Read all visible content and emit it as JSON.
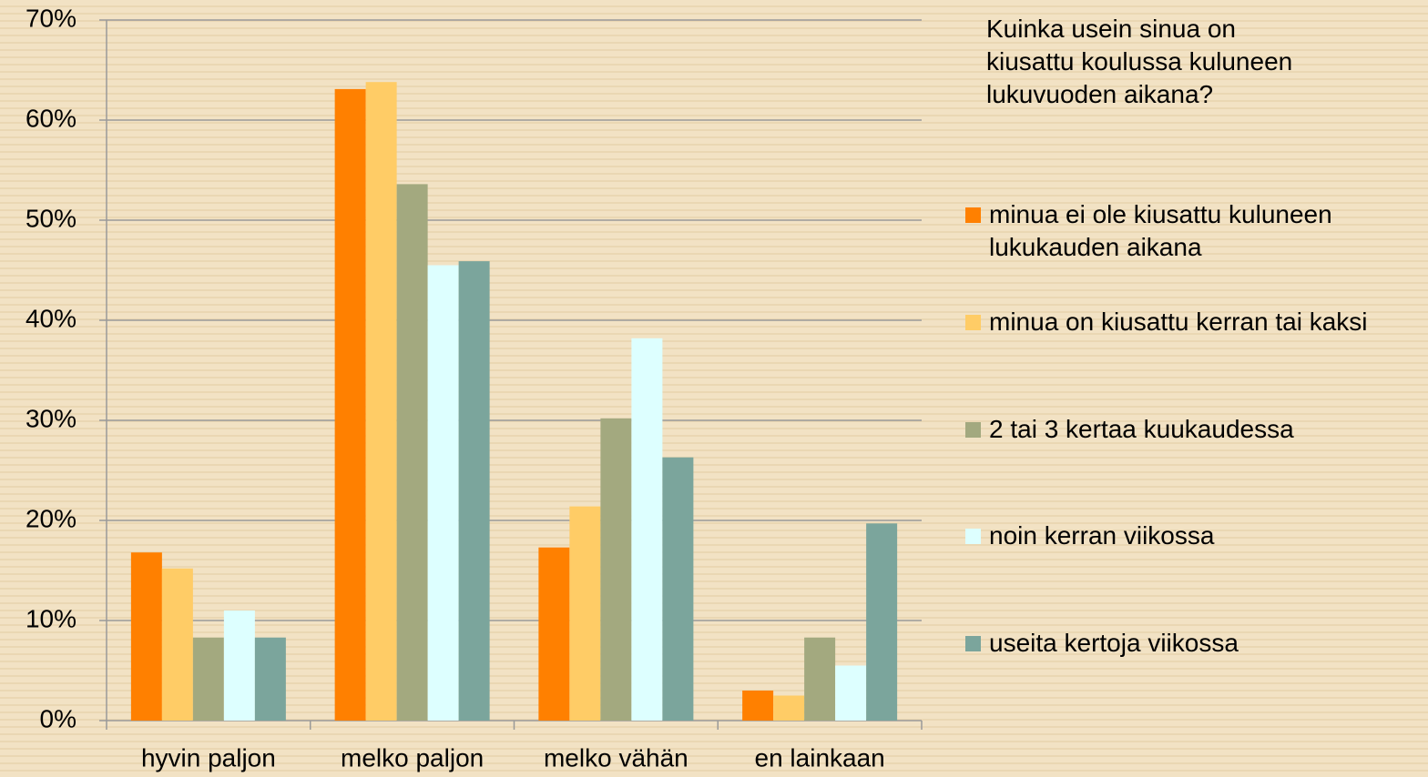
{
  "chart_data": {
    "type": "bar",
    "legend_title": "Kuinka usein sinua on kiusattu koulussa kuluneen lukuvuoden aikana?",
    "categories": [
      "hyvin paljon",
      "melko paljon",
      "melko vähän",
      "en lainkaan"
    ],
    "series": [
      {
        "name": "minua ei ole kiusattu kuluneen lukukauden aikana",
        "color": "#ff8000",
        "values": [
          16.8,
          63.1,
          17.3,
          3.0
        ]
      },
      {
        "name": "minua on kiusattu kerran tai kaksi",
        "color": "#ffcc66",
        "values": [
          15.2,
          63.8,
          21.4,
          2.5
        ]
      },
      {
        "name": "2 tai 3 kertaa kuukaudessa",
        "color": "#a3a97f",
        "values": [
          8.3,
          53.6,
          30.2,
          8.3
        ]
      },
      {
        "name": "noin kerran viikossa",
        "color": "#ddffff",
        "values": [
          11.0,
          45.5,
          38.2,
          5.5
        ]
      },
      {
        "name": "useita kertoja viikossa",
        "color": "#7ba59c",
        "values": [
          8.3,
          45.9,
          26.3,
          19.7
        ]
      }
    ],
    "ylim": [
      0,
      70
    ],
    "yticks": [
      {
        "value": 0,
        "label": "0%"
      },
      {
        "value": 10,
        "label": "10%"
      },
      {
        "value": 20,
        "label": "20%"
      },
      {
        "value": 30,
        "label": "30%"
      },
      {
        "value": 40,
        "label": "40%"
      },
      {
        "value": 50,
        "label": "50%"
      },
      {
        "value": 60,
        "label": "60%"
      },
      {
        "value": 70,
        "label": "70%"
      }
    ],
    "grid": true,
    "legend": "right"
  }
}
